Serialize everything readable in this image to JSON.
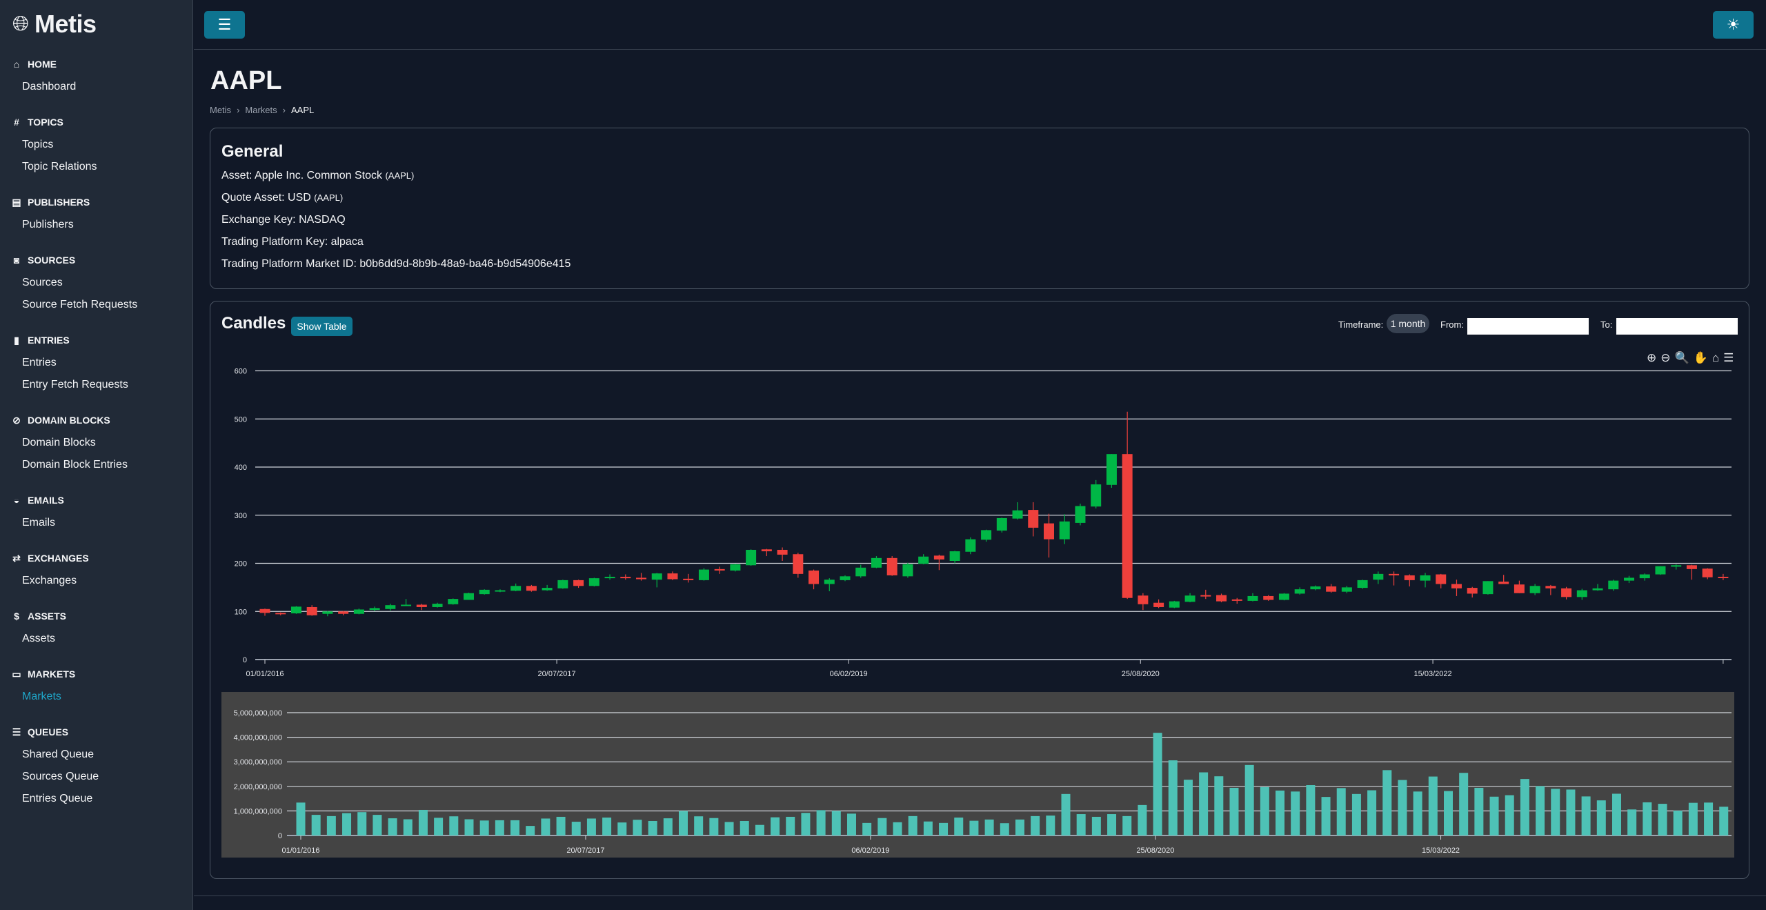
{
  "app": {
    "name": "Metis",
    "logo_icon": "globe-icon"
  },
  "sidebar": {
    "sections": [
      {
        "title": "HOME",
        "icon": "⌂",
        "icon_name": "home-icon",
        "items": [
          "Dashboard"
        ]
      },
      {
        "title": "TOPICS",
        "icon": "#",
        "icon_name": "hashtag-icon",
        "items": [
          "Topics",
          "Topic Relations"
        ]
      },
      {
        "title": "PUBLISHERS",
        "icon": "▤",
        "icon_name": "newspaper-icon",
        "items": [
          "Publishers"
        ]
      },
      {
        "title": "SOURCES",
        "icon": "◙",
        "icon_name": "rss-icon",
        "items": [
          "Sources",
          "Source Fetch Requests"
        ]
      },
      {
        "title": "ENTRIES",
        "icon": "▮",
        "icon_name": "file-icon",
        "items": [
          "Entries",
          "Entry Fetch Requests"
        ]
      },
      {
        "title": "DOMAIN BLOCKS",
        "icon": "⊘",
        "icon_name": "ban-icon",
        "items": [
          "Domain Blocks",
          "Domain Block Entries"
        ]
      },
      {
        "title": "EMAILS",
        "icon": "◒",
        "icon_name": "inbox-icon",
        "items": [
          "Emails"
        ]
      },
      {
        "title": "EXCHANGES",
        "icon": "⇄",
        "icon_name": "exchange-icon",
        "items": [
          "Exchanges"
        ]
      },
      {
        "title": "ASSETS",
        "icon": "$",
        "icon_name": "hand-dollar-icon",
        "items": [
          "Assets"
        ]
      },
      {
        "title": "MARKETS",
        "icon": "▭",
        "icon_name": "store-icon",
        "items": [
          "Markets"
        ]
      },
      {
        "title": "QUEUES",
        "icon": "☰",
        "icon_name": "list-check-icon",
        "items": [
          "Shared Queue",
          "Sources Queue",
          "Entries Queue"
        ]
      }
    ],
    "active_item": "Markets"
  },
  "topbar": {
    "menu_icon": "☰",
    "theme_icon": "☀"
  },
  "page": {
    "title": "AAPL",
    "breadcrumb": [
      "Metis",
      "Markets",
      "AAPL"
    ],
    "separator": "›"
  },
  "general": {
    "title": "General",
    "asset_label": "Asset: Apple Inc. Common Stock",
    "asset_code": "(AAPL)",
    "quote_label": "Quote Asset: USD",
    "quote_code": "(AAPL)",
    "exchange": "Exchange Key: NASDAQ",
    "platform": "Trading Platform Key: alpaca",
    "market_id": "Trading Platform Market ID: b0b6dd9d-8b9b-48a9-ba46-b9d54906e415"
  },
  "candles": {
    "title": "Candles",
    "show_table": "Show Table",
    "timeframe_label": "Timeframe:",
    "timeframe": "1 month",
    "from_label": "From:",
    "to_label": "To:",
    "from_value": "",
    "to_value": ""
  },
  "colors": {
    "up": "#00b746",
    "down": "#ef403c",
    "volume": "#4ec2b6",
    "accent": "#0e7490"
  },
  "chart_data": [
    {
      "type": "candlestick",
      "title": "",
      "start_month": "2016-01",
      "interval": "1 month",
      "ylim": [
        0,
        600
      ],
      "y_ticks": [
        "0",
        "100",
        "200",
        "300",
        "400",
        "500",
        "600"
      ],
      "x_ticks": [
        "01/01/2016",
        "20/07/2017",
        "06/02/2019",
        "25/08/2020",
        "15/03/2022"
      ],
      "ohlc": [
        [
          105,
          106,
          91,
          97
        ],
        [
          97,
          98,
          92,
          96
        ],
        [
          96,
          111,
          95,
          110
        ],
        [
          109,
          113,
          91,
          92
        ],
        [
          95,
          101,
          90,
          100
        ],
        [
          100,
          101,
          92,
          95
        ],
        [
          95,
          106,
          94,
          104
        ],
        [
          103,
          110,
          101,
          107
        ],
        [
          105,
          116,
          102,
          113
        ],
        [
          113,
          126,
          112,
          114
        ],
        [
          114,
          116,
          103,
          109
        ],
        [
          109,
          118,
          108,
          116
        ],
        [
          115,
          127,
          114,
          126
        ],
        [
          124,
          139,
          124,
          138
        ],
        [
          136,
          146,
          135,
          145
        ],
        [
          143,
          146,
          140,
          144
        ],
        [
          143,
          158,
          142,
          153
        ],
        [
          153,
          155,
          141,
          143
        ],
        [
          144,
          155,
          143,
          149
        ],
        [
          148,
          166,
          147,
          165
        ],
        [
          165,
          166,
          149,
          153
        ],
        [
          153,
          170,
          152,
          169
        ],
        [
          169,
          177,
          166,
          172
        ],
        [
          172,
          177,
          166,
          169
        ],
        [
          170,
          180,
          164,
          167
        ],
        [
          166,
          180,
          150,
          179
        ],
        [
          179,
          183,
          165,
          167
        ],
        [
          168,
          178,
          160,
          165
        ],
        [
          165,
          190,
          164,
          187
        ],
        [
          188,
          193,
          178,
          185
        ],
        [
          185,
          199,
          183,
          198
        ],
        [
          196,
          229,
          195,
          228
        ],
        [
          229,
          230,
          215,
          225
        ],
        [
          228,
          233,
          205,
          218
        ],
        [
          219,
          222,
          170,
          178
        ],
        [
          185,
          187,
          146,
          157
        ],
        [
          157,
          169,
          142,
          166
        ],
        [
          165,
          175,
          163,
          173
        ],
        [
          173,
          197,
          170,
          191
        ],
        [
          191,
          215,
          190,
          211
        ],
        [
          211,
          215,
          174,
          175
        ],
        [
          173,
          201,
          170,
          198
        ],
        [
          199,
          219,
          198,
          214
        ],
        [
          216,
          218,
          186,
          208
        ],
        [
          205,
          226,
          200,
          225
        ],
        [
          224,
          254,
          219,
          250
        ],
        [
          249,
          270,
          245,
          269
        ],
        [
          268,
          295,
          264,
          294
        ],
        [
          293,
          327,
          291,
          310
        ],
        [
          311,
          327,
          256,
          274
        ],
        [
          283,
          303,
          212,
          250
        ],
        [
          250,
          302,
          240,
          287
        ],
        [
          284,
          324,
          279,
          319
        ],
        [
          318,
          373,
          314,
          364
        ],
        [
          363,
          427,
          357,
          427
        ],
        [
          427,
          515,
          126,
          128
        ],
        [
          133,
          138,
          103,
          115
        ],
        [
          118,
          125,
          107,
          109
        ],
        [
          108,
          122,
          107,
          121
        ],
        [
          120,
          138,
          119,
          133
        ],
        [
          134,
          145,
          126,
          131
        ],
        [
          134,
          137,
          119,
          121
        ],
        [
          125,
          128,
          116,
          122
        ],
        [
          122,
          138,
          121,
          132
        ],
        [
          132,
          134,
          122,
          124
        ],
        [
          124,
          138,
          123,
          137
        ],
        [
          137,
          150,
          135,
          146
        ],
        [
          146,
          154,
          144,
          152
        ],
        [
          152,
          157,
          139,
          141
        ],
        [
          141,
          153,
          138,
          150
        ],
        [
          149,
          166,
          147,
          165
        ],
        [
          166,
          183,
          157,
          178
        ],
        [
          178,
          183,
          154,
          175
        ],
        [
          175,
          177,
          152,
          165
        ],
        [
          164,
          180,
          150,
          175
        ],
        [
          177,
          178,
          148,
          157
        ],
        [
          157,
          166,
          132,
          148
        ],
        [
          149,
          151,
          129,
          137
        ],
        [
          136,
          163,
          135,
          163
        ],
        [
          162,
          176,
          157,
          157
        ],
        [
          156,
          164,
          138,
          138
        ],
        [
          138,
          157,
          134,
          153
        ],
        [
          153,
          155,
          134,
          148
        ],
        [
          148,
          151,
          125,
          130
        ],
        [
          130,
          147,
          124,
          144
        ],
        [
          144,
          157,
          143,
          148
        ],
        [
          146,
          166,
          143,
          164
        ],
        [
          164,
          174,
          159,
          170
        ],
        [
          169,
          179,
          164,
          177
        ],
        [
          177,
          194,
          176,
          194
        ],
        [
          193,
          198,
          187,
          196
        ],
        [
          196,
          197,
          166,
          188
        ],
        [
          189,
          190,
          167,
          171
        ],
        [
          172,
          178,
          165,
          170
        ]
      ]
    },
    {
      "type": "bar",
      "title": "Volume",
      "start_month": "2016-01",
      "interval": "1 month",
      "ylim": [
        0,
        5000000000
      ],
      "y_ticks": [
        "0",
        "1,000,000,000",
        "2,000,000,000",
        "3,000,000,000",
        "4,000,000,000",
        "5,000,000,000"
      ],
      "x_ticks": [
        "01/01/2016",
        "20/07/2017",
        "06/02/2019",
        "25/08/2020",
        "15/03/2022"
      ],
      "values_billions": [
        1.34,
        0.84,
        0.79,
        0.91,
        0.95,
        0.84,
        0.7,
        0.66,
        1.04,
        0.72,
        0.78,
        0.66,
        0.61,
        0.62,
        0.62,
        0.39,
        0.69,
        0.76,
        0.56,
        0.69,
        0.73,
        0.53,
        0.64,
        0.59,
        0.7,
        1.0,
        0.78,
        0.71,
        0.55,
        0.59,
        0.43,
        0.74,
        0.76,
        0.92,
        1.03,
        1.0,
        0.89,
        0.51,
        0.71,
        0.54,
        0.79,
        0.57,
        0.51,
        0.73,
        0.6,
        0.65,
        0.5,
        0.65,
        0.79,
        0.81,
        1.69,
        0.87,
        0.76,
        0.87,
        0.79,
        1.24,
        4.18,
        3.06,
        2.27,
        2.57,
        2.41,
        1.94,
        2.87,
        1.97,
        1.83,
        1.79,
        2.05,
        1.57,
        1.93,
        1.69,
        1.84,
        2.66,
        2.26,
        1.79,
        2.4,
        1.81,
        2.55,
        1.94,
        1.58,
        1.64,
        2.3,
        2.01,
        1.9,
        1.87,
        1.59,
        1.43,
        1.7,
        1.06,
        1.35,
        1.29,
        1.01,
        1.33,
        1.34,
        1.17
      ]
    }
  ],
  "chart_toolbar": {
    "zoom_in": "⊕",
    "zoom_out": "⊖",
    "zoom_select": "🔍",
    "pan": "✋",
    "reset": "⌂",
    "menu": "☰"
  }
}
